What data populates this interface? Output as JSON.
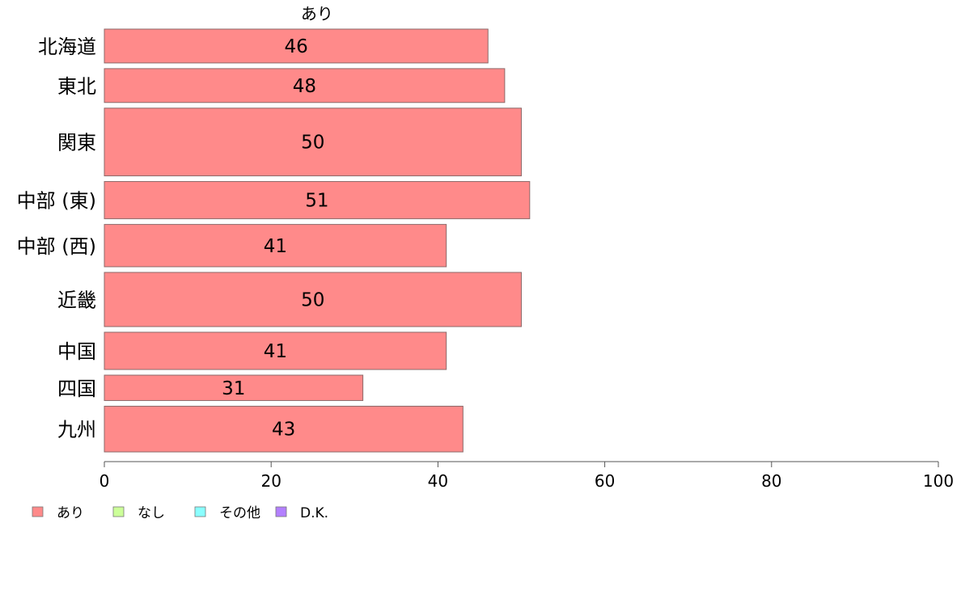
{
  "chart_data": {
    "type": "bar",
    "orientation": "horizontal",
    "series_title": "あり",
    "categories": [
      "北海道",
      "東北",
      "関東",
      "中部 (東)",
      "中部 (西)",
      "近畿",
      "中国",
      "四国",
      "九州"
    ],
    "series": [
      {
        "name": "あり",
        "color": "#ff8a8a",
        "values": [
          46,
          48,
          50,
          51,
          41,
          50,
          41,
          31,
          43
        ],
        "value_labels": [
          "46",
          "48",
          "50",
          "51",
          "41",
          "50",
          "41",
          "31",
          "43"
        ]
      }
    ],
    "relative_bar_thickness": [
      1.0,
      1.0,
      2.0,
      1.1,
      1.25,
      1.6,
      1.1,
      0.75,
      1.35
    ],
    "xlim": [
      0,
      100
    ],
    "xticks": [
      "0",
      "20",
      "40",
      "60",
      "80",
      "100"
    ],
    "grid": false,
    "legend": {
      "position": "bottom-left",
      "items": [
        {
          "label": "あり",
          "color": "#ff8a8a"
        },
        {
          "label": "なし",
          "color": "#ccff99"
        },
        {
          "label": "その他",
          "color": "#8affff"
        },
        {
          "label": "D.K.",
          "color": "#b380ff"
        }
      ]
    }
  }
}
